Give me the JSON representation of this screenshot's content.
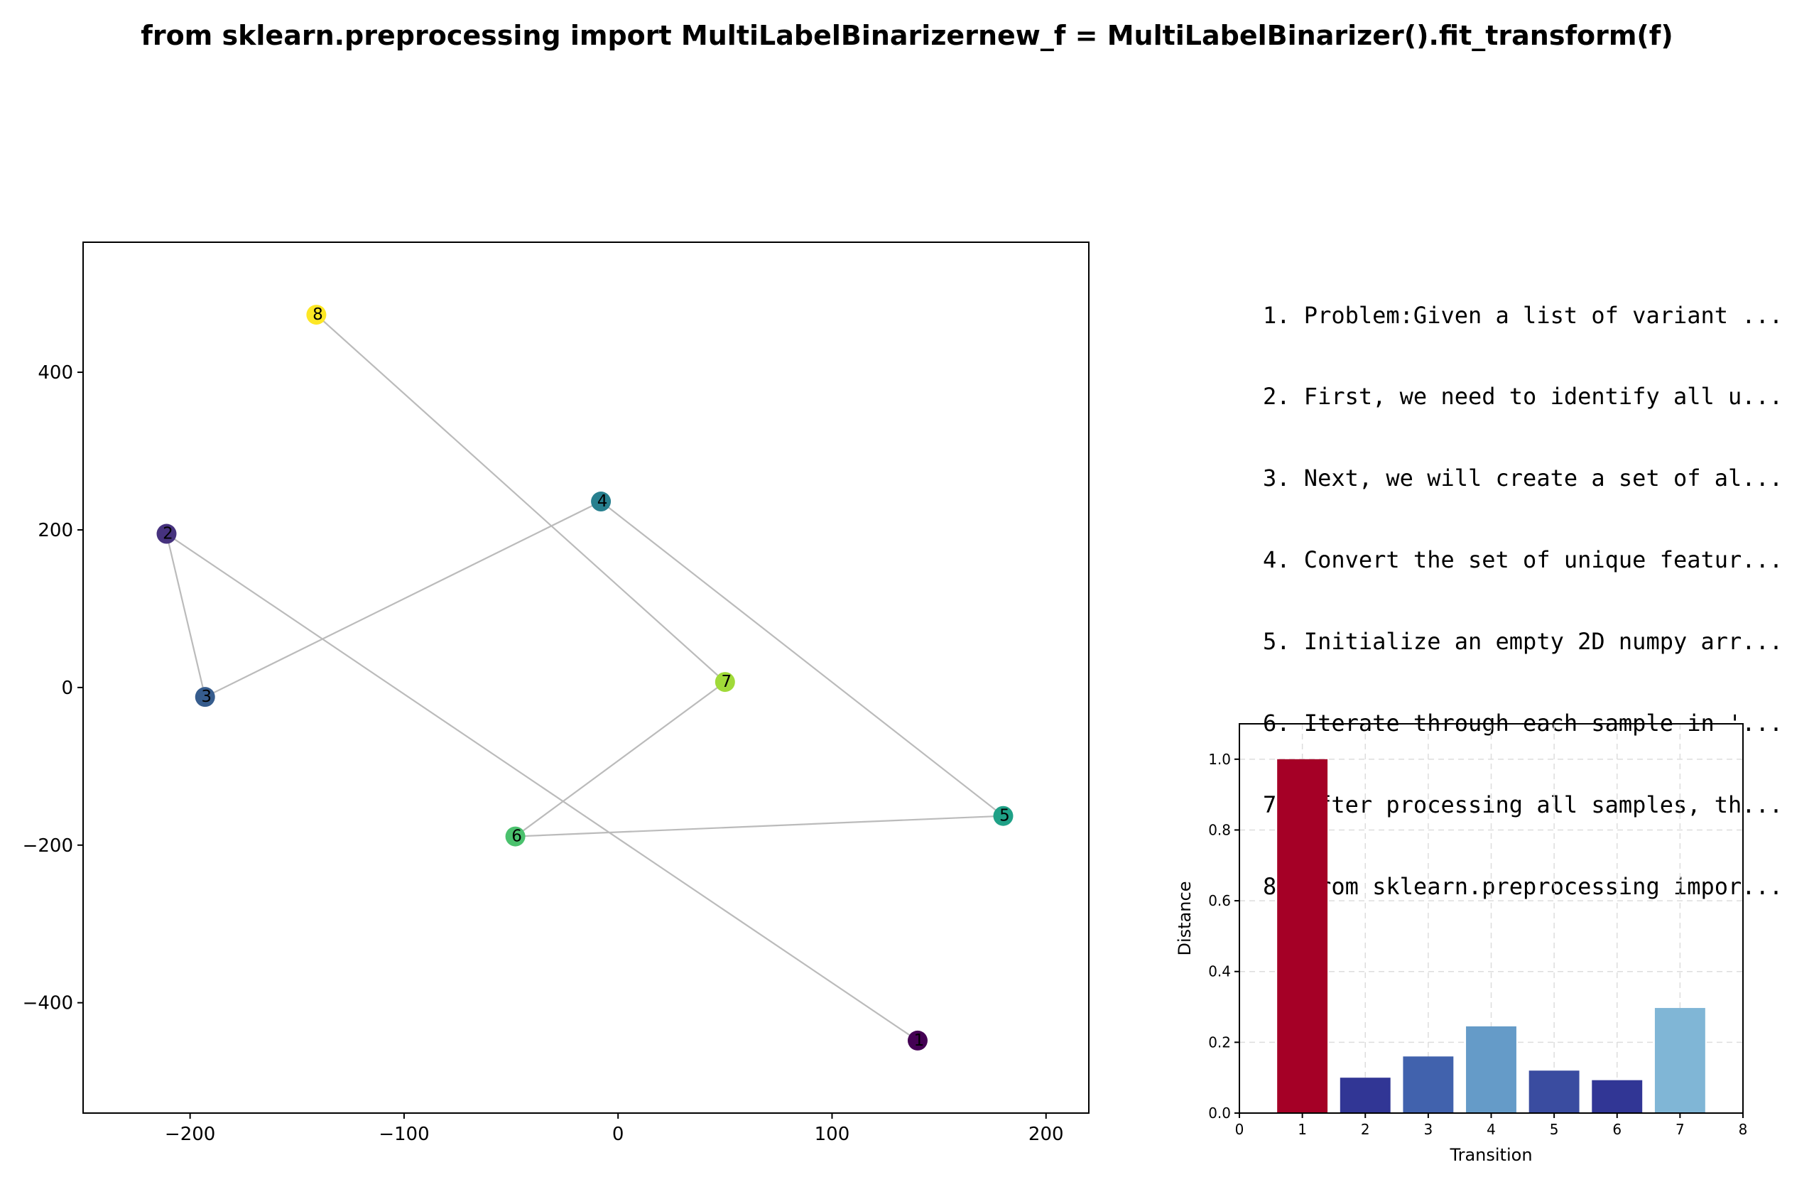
{
  "title": "from sklearn.preprocessing import MultiLabelBinarizernew_f = MultiLabelBinarizer().fit_transform(f)",
  "steps": [
    "1. Problem:Given a list of variant ...",
    "2. First, we need to identify all u...",
    "3. Next, we will create a set of al...",
    "4. Convert the set of unique featur...",
    "5. Initialize an empty 2D numpy arr...",
    "6. Iterate through each sample in '...",
    "7. After processing all samples, th...",
    "8. from sklearn.preprocessing impor..."
  ],
  "chart_data": [
    {
      "type": "scatter",
      "title": "",
      "xlabel": "",
      "ylabel": "",
      "xlim": [
        -250,
        220
      ],
      "ylim": [
        -540,
        565
      ],
      "xticks": [
        -200,
        -100,
        0,
        100,
        200
      ],
      "yticks": [
        -400,
        -200,
        0,
        200,
        400
      ],
      "xtick_labels": [
        "−200",
        "−100",
        "0",
        "100",
        "200"
      ],
      "ytick_labels": [
        "−400",
        "−200",
        "0",
        "200",
        "400"
      ],
      "grid": false,
      "connect_points_in_order": true,
      "line_color": "#bbbbbb",
      "points": [
        {
          "label": "1",
          "x": 140,
          "y": -448,
          "color": "#440154"
        },
        {
          "label": "2",
          "x": -211,
          "y": 195,
          "color": "#46327e"
        },
        {
          "label": "3",
          "x": -193,
          "y": -12,
          "color": "#365c8d"
        },
        {
          "label": "4",
          "x": -8,
          "y": 236,
          "color": "#277f8e"
        },
        {
          "label": "5",
          "x": 180,
          "y": -163,
          "color": "#1fa187"
        },
        {
          "label": "6",
          "x": -48,
          "y": -189,
          "color": "#4ac16d"
        },
        {
          "label": "7",
          "x": 50,
          "y": 7,
          "color": "#a0da39"
        },
        {
          "label": "8",
          "x": -141,
          "y": 473,
          "color": "#fde725"
        }
      ]
    },
    {
      "type": "bar",
      "title": "",
      "xlabel": "Transition",
      "ylabel": "Distance",
      "xlim": [
        0,
        8
      ],
      "ylim": [
        0,
        1.1
      ],
      "xticks": [
        0,
        1,
        2,
        3,
        4,
        5,
        6,
        7,
        8
      ],
      "xtick_labels": [
        "0",
        "1",
        "2",
        "3",
        "4",
        "5",
        "6",
        "7",
        "8"
      ],
      "yticks": [
        0,
        0.2,
        0.4,
        0.6,
        0.8,
        1.0
      ],
      "ytick_labels": [
        "0.0",
        "0.2",
        "0.4",
        "0.6",
        "0.8",
        "1.0"
      ],
      "grid": true,
      "bars": [
        {
          "x": 1,
          "value": 1.0,
          "color": "#a50026"
        },
        {
          "x": 2,
          "value": 0.1,
          "color": "#313695"
        },
        {
          "x": 3,
          "value": 0.16,
          "color": "#4162ad"
        },
        {
          "x": 4,
          "value": 0.245,
          "color": "#659bc8"
        },
        {
          "x": 5,
          "value": 0.12,
          "color": "#3a4ca0"
        },
        {
          "x": 6,
          "value": 0.093,
          "color": "#313695"
        },
        {
          "x": 7,
          "value": 0.297,
          "color": "#80b6d6"
        }
      ]
    }
  ]
}
